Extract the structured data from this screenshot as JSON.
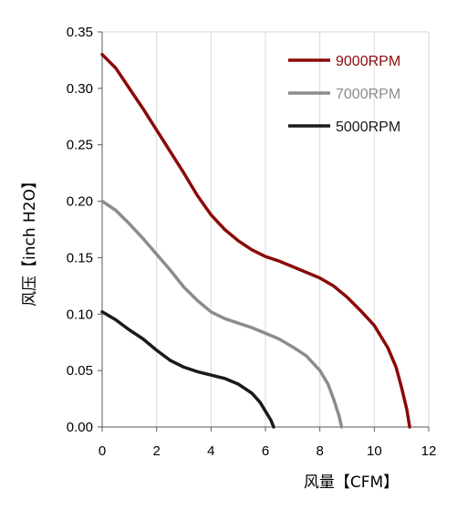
{
  "chart_data": {
    "type": "line",
    "title": "",
    "xlabel": "风量【CFM】",
    "ylabel": "风压【inch H2O】",
    "xlim": [
      0,
      12
    ],
    "ylim": [
      0,
      0.35
    ],
    "xticks": [
      0,
      2,
      4,
      6,
      8,
      10,
      12
    ],
    "yticks": [
      0.0,
      0.05,
      0.1,
      0.15,
      0.2,
      0.25,
      0.3,
      0.35
    ],
    "xtick_labels": [
      "0",
      "2",
      "4",
      "6",
      "8",
      "10",
      "12"
    ],
    "ytick_labels": [
      "0.00",
      "0.05",
      "0.10",
      "0.15",
      "0.20",
      "0.25",
      "0.30",
      "0.35"
    ],
    "grid": "vertical",
    "legend_position": "top-right",
    "series": [
      {
        "name": "9000RPM",
        "color": "#8b0a0a",
        "x": [
          0,
          0.5,
          1,
          1.5,
          2,
          2.5,
          3,
          3.5,
          4,
          4.5,
          5,
          5.5,
          6,
          6.5,
          7,
          7.5,
          8,
          8.5,
          9,
          9.5,
          10,
          10.5,
          10.8,
          11.0,
          11.2,
          11.3
        ],
        "y": [
          0.33,
          0.318,
          0.3,
          0.282,
          0.263,
          0.244,
          0.225,
          0.205,
          0.188,
          0.175,
          0.165,
          0.157,
          0.151,
          0.147,
          0.142,
          0.137,
          0.132,
          0.125,
          0.115,
          0.103,
          0.09,
          0.07,
          0.053,
          0.035,
          0.015,
          0.0
        ]
      },
      {
        "name": "7000RPM",
        "color": "#8c8c8c",
        "x": [
          0,
          0.5,
          1,
          1.5,
          2,
          2.5,
          3,
          3.5,
          4,
          4.5,
          5,
          5.5,
          6,
          6.5,
          7,
          7.5,
          8,
          8.3,
          8.5,
          8.7,
          8.8
        ],
        "y": [
          0.2,
          0.192,
          0.18,
          0.167,
          0.153,
          0.139,
          0.124,
          0.112,
          0.102,
          0.096,
          0.092,
          0.088,
          0.083,
          0.078,
          0.071,
          0.063,
          0.05,
          0.038,
          0.025,
          0.01,
          0.0
        ]
      },
      {
        "name": "5000RPM",
        "color": "#1a1a1a",
        "x": [
          0,
          0.5,
          1,
          1.5,
          2,
          2.5,
          3,
          3.5,
          4,
          4.5,
          5,
          5.5,
          5.8,
          6.0,
          6.2,
          6.3
        ],
        "y": [
          0.102,
          0.095,
          0.086,
          0.078,
          0.068,
          0.059,
          0.053,
          0.049,
          0.046,
          0.043,
          0.038,
          0.03,
          0.022,
          0.014,
          0.006,
          0.0
        ]
      }
    ]
  }
}
